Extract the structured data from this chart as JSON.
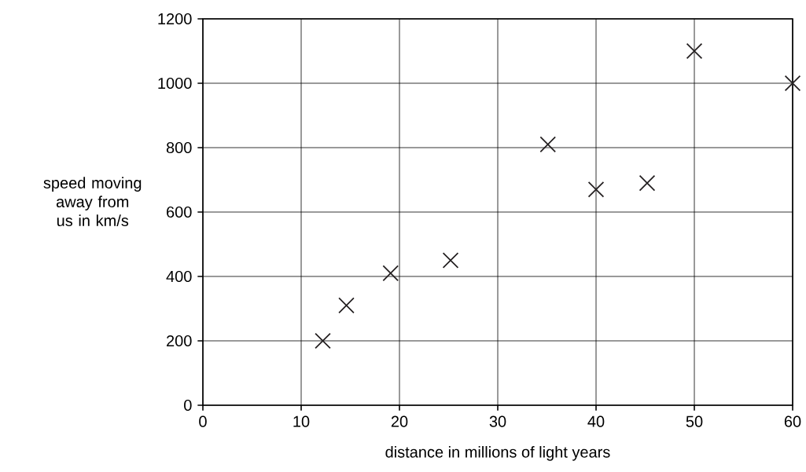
{
  "chart_data": {
    "type": "scatter",
    "xlabel": "distance in millions of light years",
    "ylabel": "speed moving away from us in km/s",
    "x": [
      12.2,
      14.6,
      19.1,
      25.2,
      35.1,
      40,
      45.2,
      50,
      60
    ],
    "values": [
      200,
      310,
      410,
      450,
      810,
      670,
      690,
      1100,
      1000
    ],
    "color": "#231f20",
    "marker": "cross",
    "grid": true,
    "xlim": [
      0,
      60
    ],
    "xticks": [
      0,
      10,
      20,
      30,
      40,
      50,
      60
    ],
    "ylim": [
      0,
      1200
    ],
    "yticks": [
      0,
      200,
      400,
      600,
      800,
      1000,
      1200
    ]
  }
}
